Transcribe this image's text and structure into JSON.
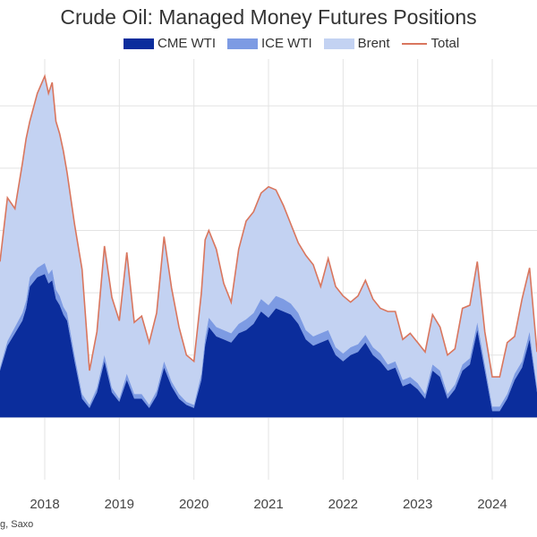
{
  "chart_data": {
    "type": "area",
    "title": "Crude Oil: Managed Money Futures Positions",
    "xlabel": "",
    "ylabel": "",
    "source": "g, Saxo",
    "legend_position": "top",
    "grid": true,
    "x_ticks": [
      "2018",
      "2019",
      "2020",
      "2021",
      "2022",
      "2023",
      "2024"
    ],
    "x_range": [
      2017.4,
      2024.6
    ],
    "y_range": [
      -200,
      1150
    ],
    "colors": {
      "cme_wti": "#0b2d9c",
      "ice_wti": "#7d9be3",
      "brent": "#c3d2f2",
      "total": "#d9765e",
      "grid": "#e3e3e3"
    },
    "x": [
      2017.4,
      2017.5,
      2017.6,
      2017.7,
      2017.75,
      2017.8,
      2017.9,
      2018.0,
      2018.05,
      2018.1,
      2018.15,
      2018.2,
      2018.25,
      2018.3,
      2018.4,
      2018.5,
      2018.6,
      2018.7,
      2018.8,
      2018.9,
      2019.0,
      2019.1,
      2019.2,
      2019.3,
      2019.4,
      2019.5,
      2019.6,
      2019.7,
      2019.8,
      2019.9,
      2020.0,
      2020.1,
      2020.15,
      2020.2,
      2020.3,
      2020.4,
      2020.5,
      2020.6,
      2020.7,
      2020.8,
      2020.9,
      2021.0,
      2021.1,
      2021.2,
      2021.3,
      2021.4,
      2021.5,
      2021.6,
      2021.7,
      2021.8,
      2021.9,
      2022.0,
      2022.1,
      2022.2,
      2022.3,
      2022.4,
      2022.5,
      2022.6,
      2022.7,
      2022.8,
      2022.9,
      2023.0,
      2023.1,
      2023.2,
      2023.3,
      2023.4,
      2023.5,
      2023.6,
      2023.7,
      2023.8,
      2023.9,
      2024.0,
      2024.1,
      2024.2,
      2024.3,
      2024.4,
      2024.5,
      2024.6
    ],
    "series": [
      {
        "name": "CME WTI",
        "values": [
          150,
          230,
          270,
          310,
          350,
          420,
          450,
          460,
          430,
          440,
          380,
          360,
          330,
          310,
          180,
          60,
          30,
          80,
          180,
          80,
          50,
          120,
          60,
          60,
          30,
          70,
          160,
          100,
          60,
          40,
          30,
          120,
          230,
          290,
          260,
          250,
          240,
          270,
          280,
          300,
          340,
          320,
          350,
          340,
          330,
          300,
          250,
          230,
          240,
          250,
          200,
          180,
          200,
          210,
          240,
          200,
          180,
          150,
          160,
          100,
          110,
          90,
          60,
          150,
          130,
          60,
          90,
          150,
          170,
          280,
          150,
          20,
          20,
          60,
          120,
          160,
          250,
          80
        ]
      },
      {
        "name": "ICE WTI",
        "values": [
          10,
          15,
          20,
          25,
          25,
          30,
          30,
          35,
          30,
          35,
          30,
          30,
          25,
          25,
          20,
          15,
          10,
          15,
          20,
          15,
          10,
          20,
          15,
          15,
          10,
          15,
          20,
          15,
          15,
          10,
          10,
          20,
          25,
          30,
          30,
          30,
          30,
          30,
          35,
          35,
          40,
          40,
          40,
          40,
          35,
          35,
          30,
          30,
          30,
          30,
          25,
          25,
          25,
          25,
          25,
          25,
          25,
          20,
          20,
          20,
          20,
          20,
          15,
          20,
          20,
          15,
          15,
          20,
          20,
          25,
          20,
          15,
          15,
          15,
          20,
          20,
          25,
          15
        ]
      },
      {
        "name": "Brent",
        "values": [
          340,
          460,
          380,
          480,
          520,
          500,
          560,
          600,
          580,
          600,
          540,
          520,
          500,
          450,
          420,
          400,
          110,
          180,
          350,
          290,
          250,
          390,
          230,
          250,
          200,
          250,
          400,
          300,
          215,
          150,
          140,
          260,
          315,
          280,
          250,
          150,
          100,
          240,
          315,
          325,
          340,
          380,
          340,
          300,
          255,
          225,
          240,
          230,
          150,
          230,
          195,
          185,
          145,
          155,
          175,
          155,
          145,
          170,
          160,
          130,
          140,
          130,
          135,
          160,
          140,
          125,
          115,
          180,
          170,
          195,
          105,
          95,
          95,
          165,
          120,
          200,
          205,
          115
        ]
      },
      {
        "name": "Total",
        "values": [
          500,
          705,
          670,
          815,
          895,
          950,
          1040,
          1095,
          1040,
          1075,
          950,
          910,
          855,
          785,
          620,
          475,
          150,
          275,
          550,
          385,
          310,
          530,
          305,
          325,
          240,
          335,
          580,
          415,
          290,
          200,
          180,
          400,
          570,
          600,
          540,
          430,
          370,
          540,
          630,
          660,
          720,
          740,
          730,
          680,
          620,
          560,
          520,
          490,
          420,
          510,
          420,
          390,
          370,
          390,
          440,
          380,
          350,
          340,
          340,
          250,
          270,
          240,
          210,
          330,
          290,
          200,
          220,
          350,
          360,
          500,
          275,
          130,
          130,
          240,
          260,
          380,
          480,
          210
        ]
      }
    ]
  }
}
